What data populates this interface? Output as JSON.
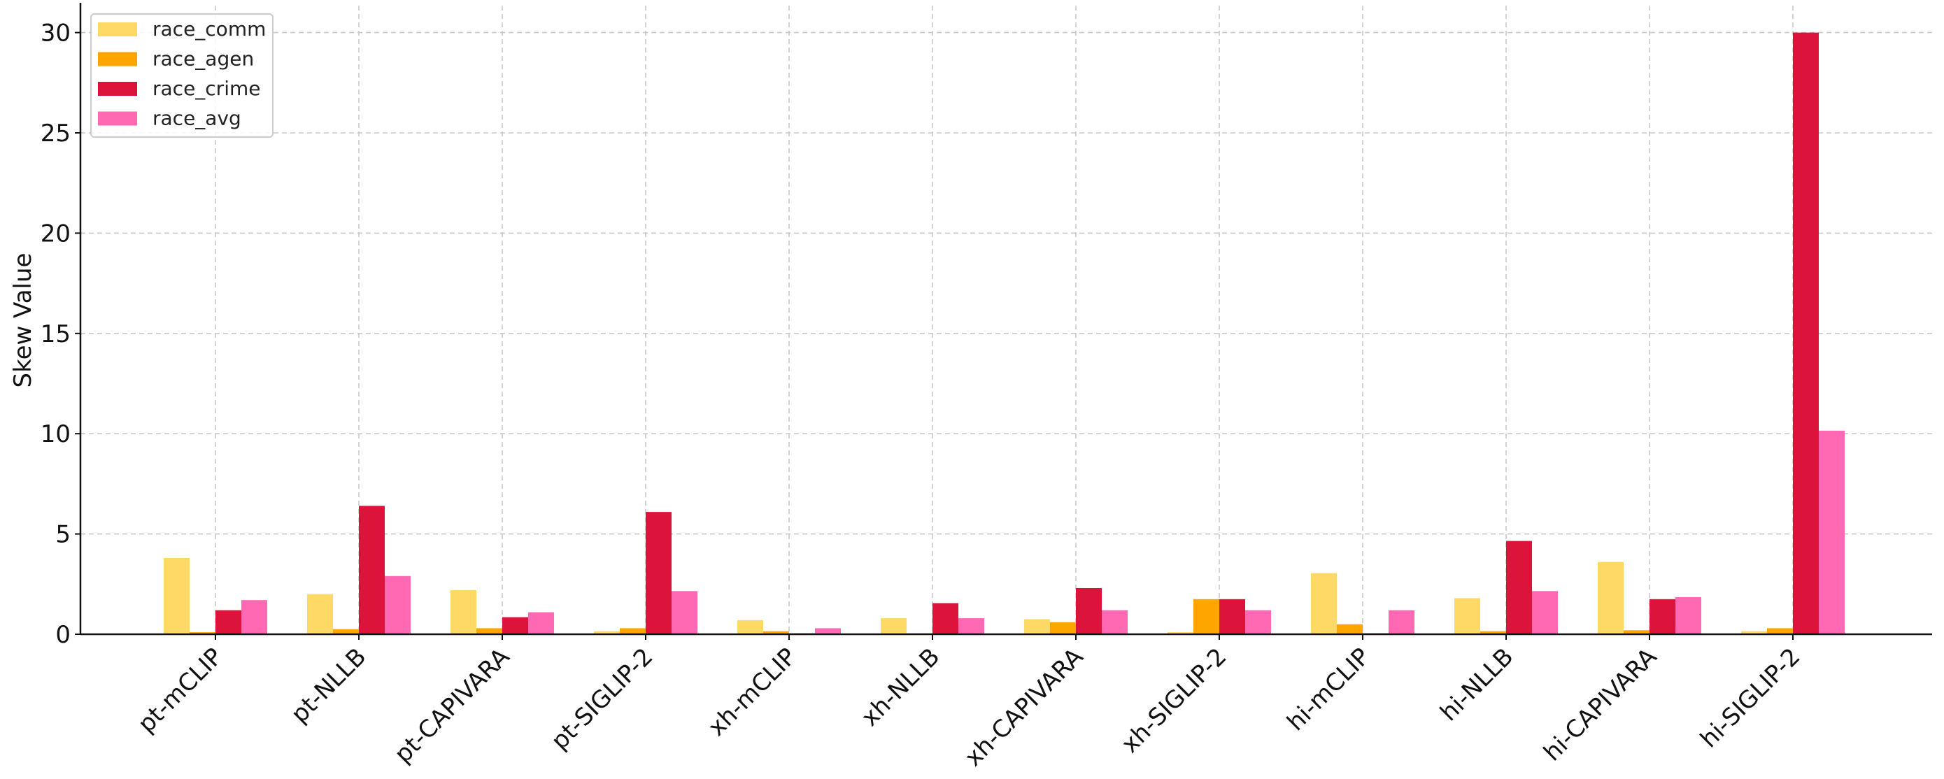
{
  "chart_data": {
    "type": "bar",
    "title": "",
    "xlabel": "",
    "ylabel": "Skew Value",
    "ylim": [
      0,
      31.5
    ],
    "yticks": [
      0,
      5,
      10,
      15,
      20,
      25,
      30
    ],
    "grid": true,
    "legend_position": "top-left",
    "categories": [
      "pt-mCLIP",
      "pt-NLLB",
      "pt-CAPIVARA",
      "pt-SIGLIP-2",
      "xh-mCLIP",
      "xh-NLLB",
      "xh-CAPIVARA",
      "xh-SIGLIP-2",
      "hi-mCLIP",
      "hi-NLLB",
      "hi-CAPIVARA",
      "hi-SIGLIP-2"
    ],
    "series": [
      {
        "name": "race_comm",
        "color": "#FFD966",
        "values": [
          3.8,
          2.0,
          2.2,
          0.15,
          0.7,
          0.8,
          0.75,
          0.1,
          3.05,
          1.8,
          3.6,
          0.15
        ]
      },
      {
        "name": "race_agen",
        "color": "#FFA500",
        "values": [
          0.1,
          0.25,
          0.3,
          0.3,
          0.15,
          0.05,
          0.6,
          1.75,
          0.5,
          0.15,
          0.2,
          0.3
        ]
      },
      {
        "name": "race_crime",
        "color": "#DC143C",
        "values": [
          1.2,
          6.4,
          0.85,
          6.1,
          0.05,
          1.55,
          2.3,
          1.75,
          0.05,
          4.65,
          1.75,
          30.0
        ]
      },
      {
        "name": "race_avg",
        "color": "#FF69B4",
        "values": [
          1.7,
          2.9,
          1.1,
          2.15,
          0.3,
          0.8,
          1.2,
          1.2,
          1.2,
          2.15,
          1.85,
          10.15
        ]
      }
    ]
  }
}
